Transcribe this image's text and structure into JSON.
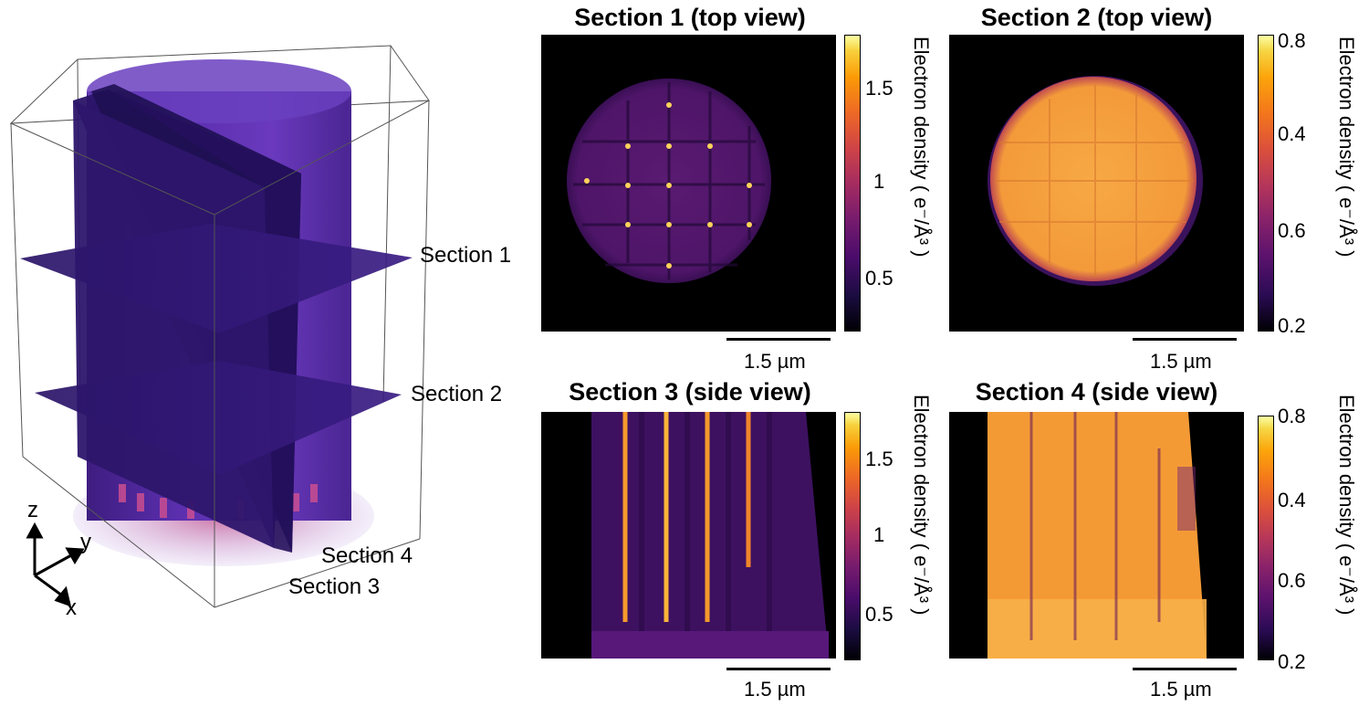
{
  "volume": {
    "sections": [
      "Section 1",
      "Section 2",
      "Section 4",
      "Section 3"
    ],
    "axes": {
      "z": "z",
      "y": "y",
      "x": "x"
    }
  },
  "panels": [
    {
      "title": "Section 1 (top view)",
      "cbar_label": "Electron density ( e⁻/Å³ )",
      "ticks": [
        "1.5",
        "1",
        "0.5"
      ],
      "scale": "1.5 µm"
    },
    {
      "title": "Section 2 (top view)",
      "cbar_label": "Electron density ( e⁻/Å³ )",
      "ticks": [
        "0.8",
        "0.4",
        "0.6",
        "0.2"
      ],
      "scale": "1.5 µm"
    },
    {
      "title": "Section 3 (side view)",
      "cbar_label": "Electron density ( e⁻/Å³ )",
      "ticks": [
        "1.5",
        "1",
        "0.5"
      ],
      "scale": "1.5 µm"
    },
    {
      "title": "Section 4 (side view)",
      "cbar_label": "Electron density ( e⁻/Å³ )",
      "ticks": [
        "0.8",
        "0.4",
        "0.6",
        "0.2"
      ],
      "scale": "1.5 µm"
    }
  ],
  "colors": {
    "low": "#000004",
    "mid": "#b63679",
    "high": "#fcffa4",
    "purple": "#4b2a8c"
  }
}
